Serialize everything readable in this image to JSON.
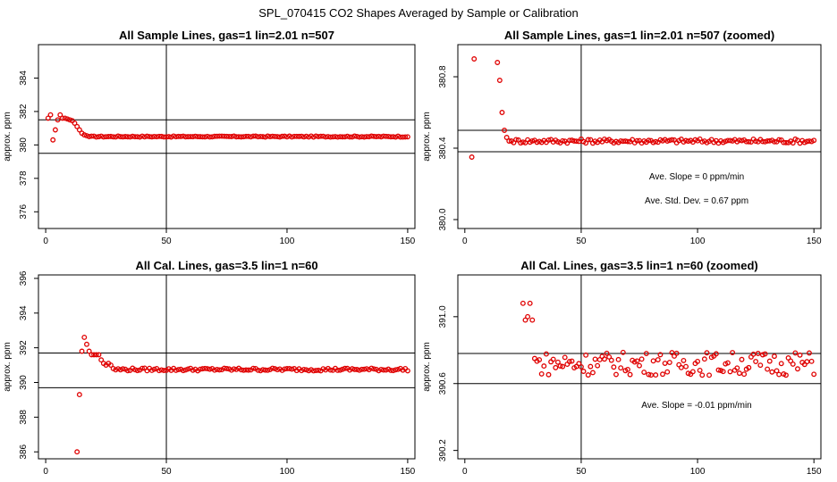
{
  "figure_title": "SPL_070415  CO2 Shapes Averaged by Sample or Calibration",
  "colors": {
    "points": "#e00000",
    "axis": "#000000",
    "background": "#ffffff"
  },
  "chart_data": [
    {
      "type": "scatter",
      "title": "All Sample Lines, gas=1 lin=2.01 n=507",
      "xlabel": "",
      "ylabel": "approx. ppm",
      "xlim": [
        -3,
        153
      ],
      "ylim": [
        375,
        386
      ],
      "xticks": [
        "0",
        "50",
        "100",
        "150"
      ],
      "yticks": [
        "376",
        "378",
        "380",
        "382",
        "384"
      ],
      "hlines": [
        381.5,
        379.5
      ],
      "vline": 50,
      "annotations": [],
      "series": [
        {
          "x": [
            1,
            2,
            3,
            4,
            5,
            6,
            7,
            8,
            9,
            10,
            11,
            12,
            13,
            14,
            15,
            16,
            17,
            18
          ],
          "y": [
            381.6,
            381.8,
            380.3,
            380.9,
            381.5,
            381.8,
            381.6,
            381.6,
            381.55,
            381.5,
            381.45,
            381.3,
            381.1,
            380.9,
            380.7,
            380.6,
            380.55,
            380.5
          ]
        }
      ],
      "plateau": {
        "x_start": 19,
        "x_end": 150,
        "y": 380.5,
        "jitter": 0.03
      }
    },
    {
      "type": "scatter",
      "title": "All Sample Lines, gas=1 lin=2.01 n=507 (zoomed)",
      "xlabel": "",
      "ylabel": "approx. ppm",
      "xlim": [
        -3,
        153
      ],
      "ylim": [
        379.95,
        380.98
      ],
      "xticks": [
        "0",
        "50",
        "100",
        "150"
      ],
      "yticks": [
        "380.0",
        "380.4",
        "380.8"
      ],
      "hlines": [
        380.5,
        380.38
      ],
      "vline": 50,
      "annotations": [
        "Ave. Slope =  0  ppm/min",
        "Ave. Std. Dev. =  0.67  ppm"
      ],
      "series": [
        {
          "x": [
            3,
            4,
            14,
            15,
            16,
            17,
            18,
            19,
            20
          ],
          "y": [
            380.35,
            380.9,
            380.88,
            380.78,
            380.6,
            380.5,
            380.46,
            380.44,
            380.44
          ]
        }
      ],
      "plateau": {
        "x_start": 21,
        "x_end": 150,
        "y": 380.44,
        "jitter": 0.012
      }
    },
    {
      "type": "scatter",
      "title": "All Cal. Lines, gas=3.5 lin=1 n=60",
      "xlabel": "",
      "ylabel": "approx. ppm",
      "xlim": [
        -3,
        153
      ],
      "ylim": [
        385.6,
        396.2
      ],
      "xticks": [
        "0",
        "50",
        "100",
        "150"
      ],
      "yticks": [
        "386",
        "388",
        "390",
        "392",
        "394",
        "396"
      ],
      "hlines": [
        391.7,
        389.7
      ],
      "vline": 50,
      "annotations": [],
      "series": [
        {
          "x": [
            13,
            14,
            15,
            16,
            17,
            18,
            19,
            20,
            21,
            22,
            23,
            24,
            25,
            26,
            27,
            28
          ],
          "y": [
            386.0,
            389.3,
            391.8,
            392.6,
            392.2,
            391.8,
            391.6,
            391.6,
            391.6,
            391.6,
            391.3,
            391.1,
            391.0,
            391.1,
            391.0,
            390.8
          ]
        }
      ],
      "plateau": {
        "x_start": 29,
        "x_end": 150,
        "y": 390.75,
        "jitter": 0.08
      }
    },
    {
      "type": "scatter",
      "title": "All Cal. Lines, gas=3.5 lin=1 n=60 (zoomed)",
      "xlabel": "",
      "ylabel": "approx. ppm",
      "xlim": [
        -3,
        153
      ],
      "ylim": [
        390.15,
        391.25
      ],
      "xticks": [
        "0",
        "50",
        "100",
        "150"
      ],
      "yticks": [
        "390.2",
        "390.6",
        "391.0"
      ],
      "hlines": [
        390.78,
        390.6
      ],
      "vline": 50,
      "annotations": [
        "Ave. Slope =  -0.01  ppm/min"
      ],
      "series": [
        {
          "x": [
            25,
            26,
            27,
            28,
            29,
            30
          ],
          "y": [
            391.08,
            390.98,
            391.0,
            391.08,
            390.98,
            390.75
          ]
        }
      ],
      "plateau": {
        "x_start": 31,
        "x_end": 150,
        "y": 390.72,
        "jitter": 0.07
      }
    }
  ]
}
